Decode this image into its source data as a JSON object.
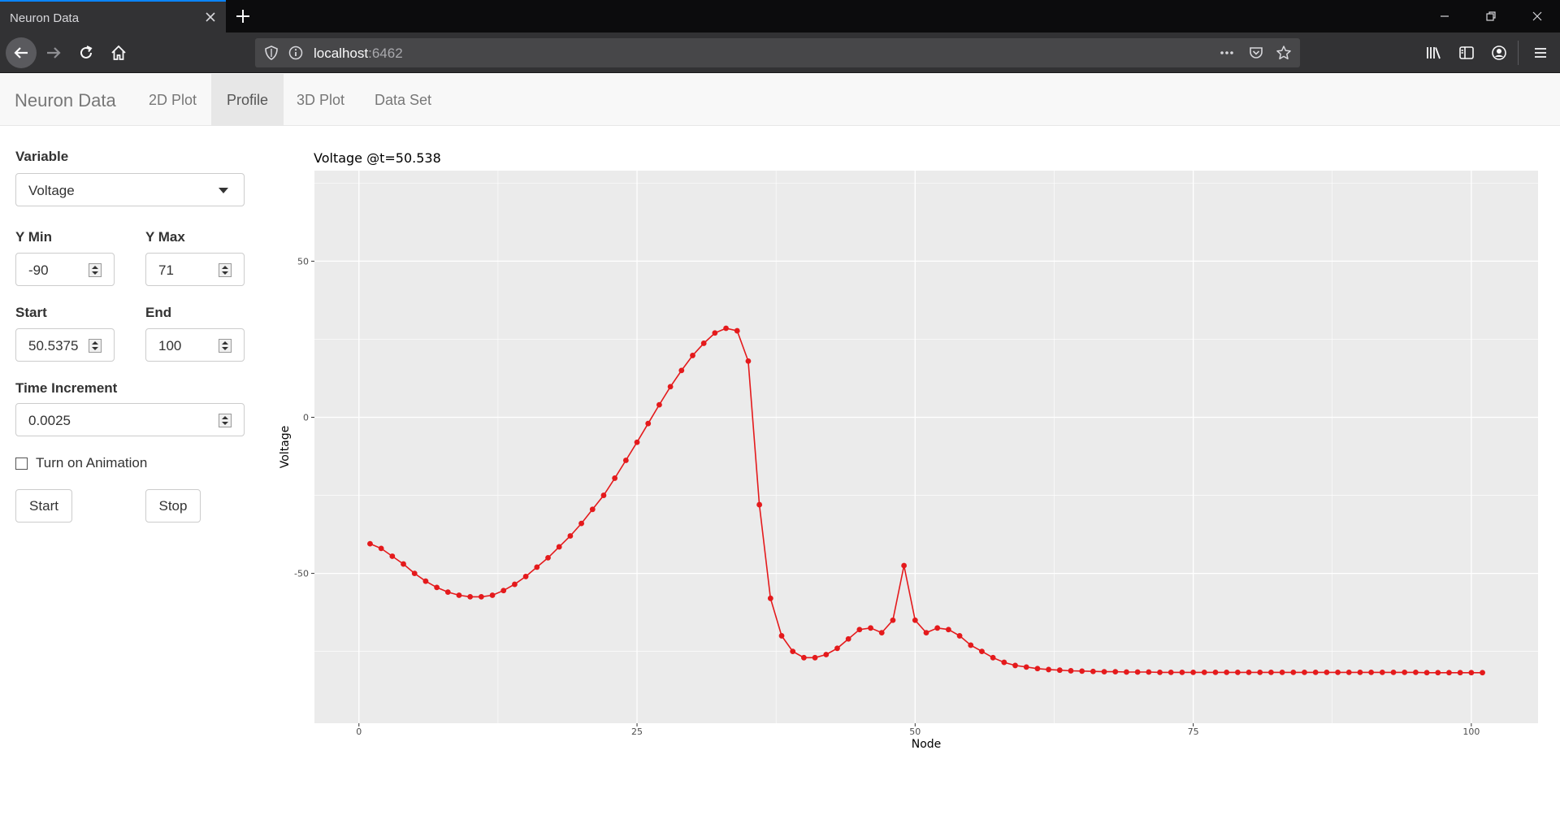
{
  "browser": {
    "tab_title": "Neuron Data",
    "url_host": "localhost",
    "url_port": ":6462"
  },
  "app": {
    "brand": "Neuron Data",
    "tabs": [
      "2D Plot",
      "Profile",
      "3D Plot",
      "Data Set"
    ],
    "active_tab": "Profile"
  },
  "sidebar": {
    "variable_label": "Variable",
    "variable_value": "Voltage",
    "ymin_label": "Y Min",
    "ymin_value": "-90",
    "ymax_label": "Y Max",
    "ymax_value": "71",
    "start_label": "Start",
    "start_value": "50.5375",
    "end_label": "End",
    "end_value": "100",
    "increment_label": "Time Increment",
    "increment_value": "0.0025",
    "animation_label": "Turn on Animation",
    "animation_checked": false,
    "start_button": "Start",
    "stop_button": "Stop"
  },
  "chart_data": {
    "type": "line",
    "title": "Voltage @t=50.538",
    "xlabel": "Node",
    "ylabel": "Voltage",
    "xlim": [
      -4,
      106
    ],
    "ylim": [
      -98,
      79
    ],
    "x_ticks": [
      0,
      25,
      50,
      75,
      100
    ],
    "y_ticks": [
      -50,
      0,
      50
    ],
    "grid": true,
    "series": [
      {
        "color": "#e41a1c",
        "x": [
          1,
          2,
          3,
          4,
          5,
          6,
          7,
          8,
          9,
          10,
          11,
          12,
          13,
          14,
          15,
          16,
          17,
          18,
          19,
          20,
          21,
          22,
          23,
          24,
          25,
          26,
          27,
          28,
          29,
          30,
          31,
          32,
          33,
          34,
          35,
          36,
          37,
          38,
          39,
          40,
          41,
          42,
          43,
          44,
          45,
          46,
          47,
          48,
          49,
          50,
          51,
          52,
          53,
          54,
          55,
          56,
          57,
          58,
          59,
          60,
          61,
          62,
          63,
          64,
          65,
          66,
          67,
          68,
          69,
          70,
          71,
          72,
          73,
          74,
          75,
          76,
          77,
          78,
          79,
          80,
          81,
          82,
          83,
          84,
          85,
          86,
          87,
          88,
          89,
          90,
          91,
          92,
          93,
          94,
          95,
          96,
          97,
          98,
          99,
          100,
          101
        ],
        "values": [
          -40.5,
          -42,
          -44.5,
          -47,
          -50,
          -52.5,
          -54.5,
          -56,
          -57,
          -57.5,
          -57.5,
          -57,
          -55.5,
          -53.5,
          -51,
          -48,
          -45,
          -41.5,
          -38,
          -34,
          -29.5,
          -25,
          -19.5,
          -13.8,
          -8,
          -2,
          4,
          9.8,
          15,
          19.8,
          23.7,
          27,
          28.5,
          27.7,
          18,
          -28,
          -58,
          -70,
          -75,
          -77,
          -77,
          -76,
          -74,
          -71,
          -68,
          -67.5,
          -69,
          -65,
          -47.5,
          -65,
          -69,
          -67.5,
          -68,
          -70,
          -73,
          -75,
          -77,
          -78.5,
          -79.5,
          -80,
          -80.5,
          -80.8,
          -81,
          -81.2,
          -81.3,
          -81.4,
          -81.5,
          -81.5,
          -81.6,
          -81.6,
          -81.6,
          -81.7,
          -81.7,
          -81.7,
          -81.7,
          -81.7,
          -81.7,
          -81.7,
          -81.7,
          -81.7,
          -81.7,
          -81.7,
          -81.7,
          -81.7,
          -81.7,
          -81.7,
          -81.7,
          -81.7,
          -81.7,
          -81.7,
          -81.7,
          -81.7,
          -81.7,
          -81.7,
          -81.7,
          -81.8,
          -81.8,
          -81.8,
          -81.8,
          -81.8,
          -81.8
        ]
      }
    ]
  },
  "colors": {
    "panel_bg": "#ebebeb",
    "grid": "#ffffff",
    "line": "#e41a1c",
    "accent": "#0a84ff"
  }
}
